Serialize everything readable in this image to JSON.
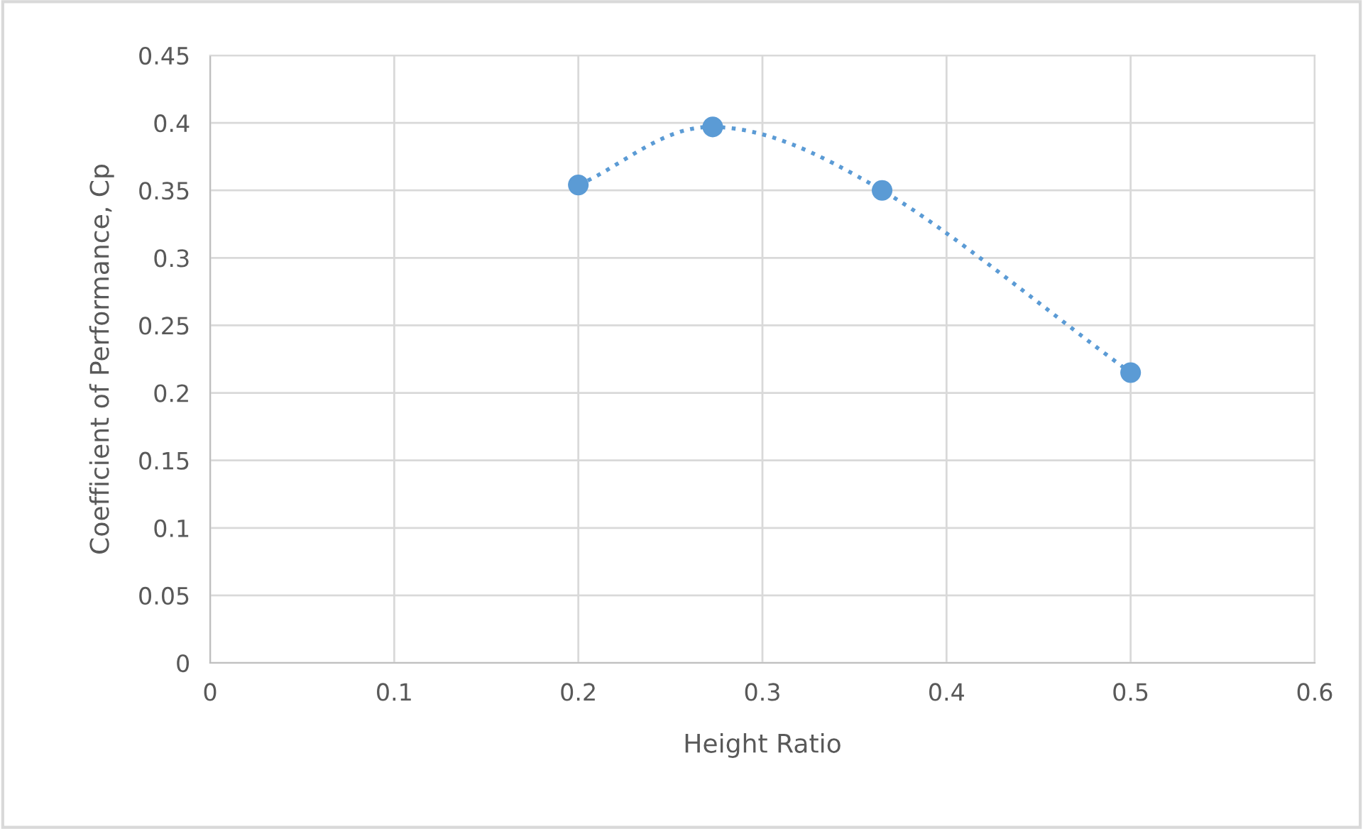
{
  "chart_data": {
    "type": "line",
    "xlabel": "Height Ratio",
    "ylabel": "Coefficient of Performance, Cp",
    "series": [
      {
        "color": "#5b9bd5",
        "x": [
          0.2,
          0.273,
          0.365,
          0.5
        ],
        "values": [
          0.354,
          0.397,
          0.35,
          0.215
        ]
      }
    ],
    "xlim": [
      0,
      0.6
    ],
    "xticks": [
      0,
      0.1,
      0.2,
      0.3,
      0.4,
      0.5,
      0.6
    ],
    "ylim": [
      0,
      0.45
    ],
    "yticks": [
      0,
      0.05,
      0.1,
      0.15,
      0.2,
      0.25,
      0.3,
      0.35,
      0.4,
      0.45
    ],
    "grid": true,
    "marker": "circle",
    "line_style": "dotted"
  }
}
